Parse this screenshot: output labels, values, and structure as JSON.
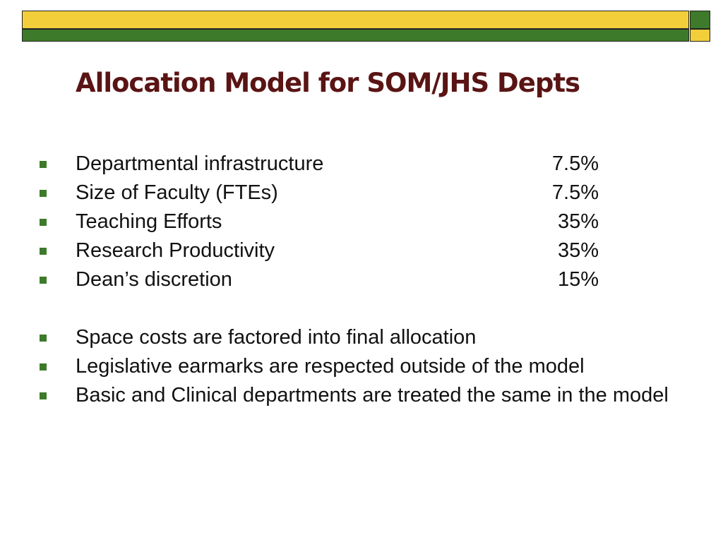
{
  "colors": {
    "yellow": "#f2cf3a",
    "green": "#3d7a2a",
    "bullet": "#3d7a2a",
    "title": "#5a1414"
  },
  "title": "Allocation Model for SOM/JHS Depts",
  "allocation_items": [
    {
      "label": "Departmental infrastructure",
      "percent": "7.5%"
    },
    {
      "label": "Size of Faculty (FTEs)",
      "percent": "7.5%"
    },
    {
      "label": "Teaching Efforts",
      "percent": "35%"
    },
    {
      "label": "Research Productivity",
      "percent": "35%"
    },
    {
      "label": "Dean’s discretion",
      "percent": "15%"
    }
  ],
  "notes": [
    "Space costs are factored into final allocation",
    "Legislative earmarks are respected outside of the model",
    "Basic and Clinical departments are treated the same in the model"
  ]
}
